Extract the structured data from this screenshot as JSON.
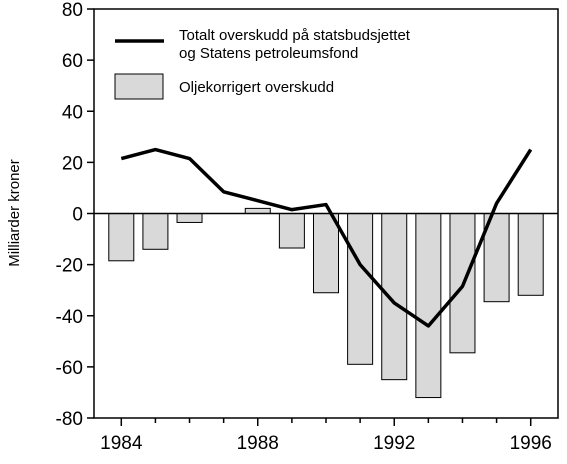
{
  "chart_data": {
    "type": "bar",
    "ylabel": "Milliarder kroner",
    "ylim": [
      -80,
      80
    ],
    "yticks": [
      80,
      60,
      40,
      20,
      0,
      -20,
      -40,
      -60,
      -80
    ],
    "xlim": [
      1983.2,
      1996.8
    ],
    "xticks": [
      1984,
      1988,
      1992,
      1996
    ],
    "grid": false,
    "legend_placement": "top-right",
    "bar_series": {
      "name": "Oljekorrigert overskudd",
      "color": "#d9d9d9",
      "x": [
        1984,
        1985,
        1986,
        1987,
        1988,
        1989,
        1990,
        1991,
        1992,
        1993,
        1994,
        1995,
        1996
      ],
      "values": [
        -18.5,
        -14,
        -3.5,
        0,
        2,
        -13.5,
        -31,
        -59,
        -65,
        -72,
        -54.5,
        -34.5,
        -32
      ]
    },
    "line_series": {
      "name_lines": [
        "Totalt overskudd på statsbudsjettet",
        "og Statens petroleumsfond"
      ],
      "color": "#000000",
      "x": [
        1984,
        1985,
        1986,
        1987,
        1988,
        1989,
        1990,
        1991,
        1992,
        1993,
        1994,
        1995,
        1996
      ],
      "values": [
        21.5,
        25,
        21.5,
        8.5,
        5,
        1.5,
        3.5,
        -20,
        -35,
        -44,
        -28.5,
        4,
        25
      ]
    }
  }
}
